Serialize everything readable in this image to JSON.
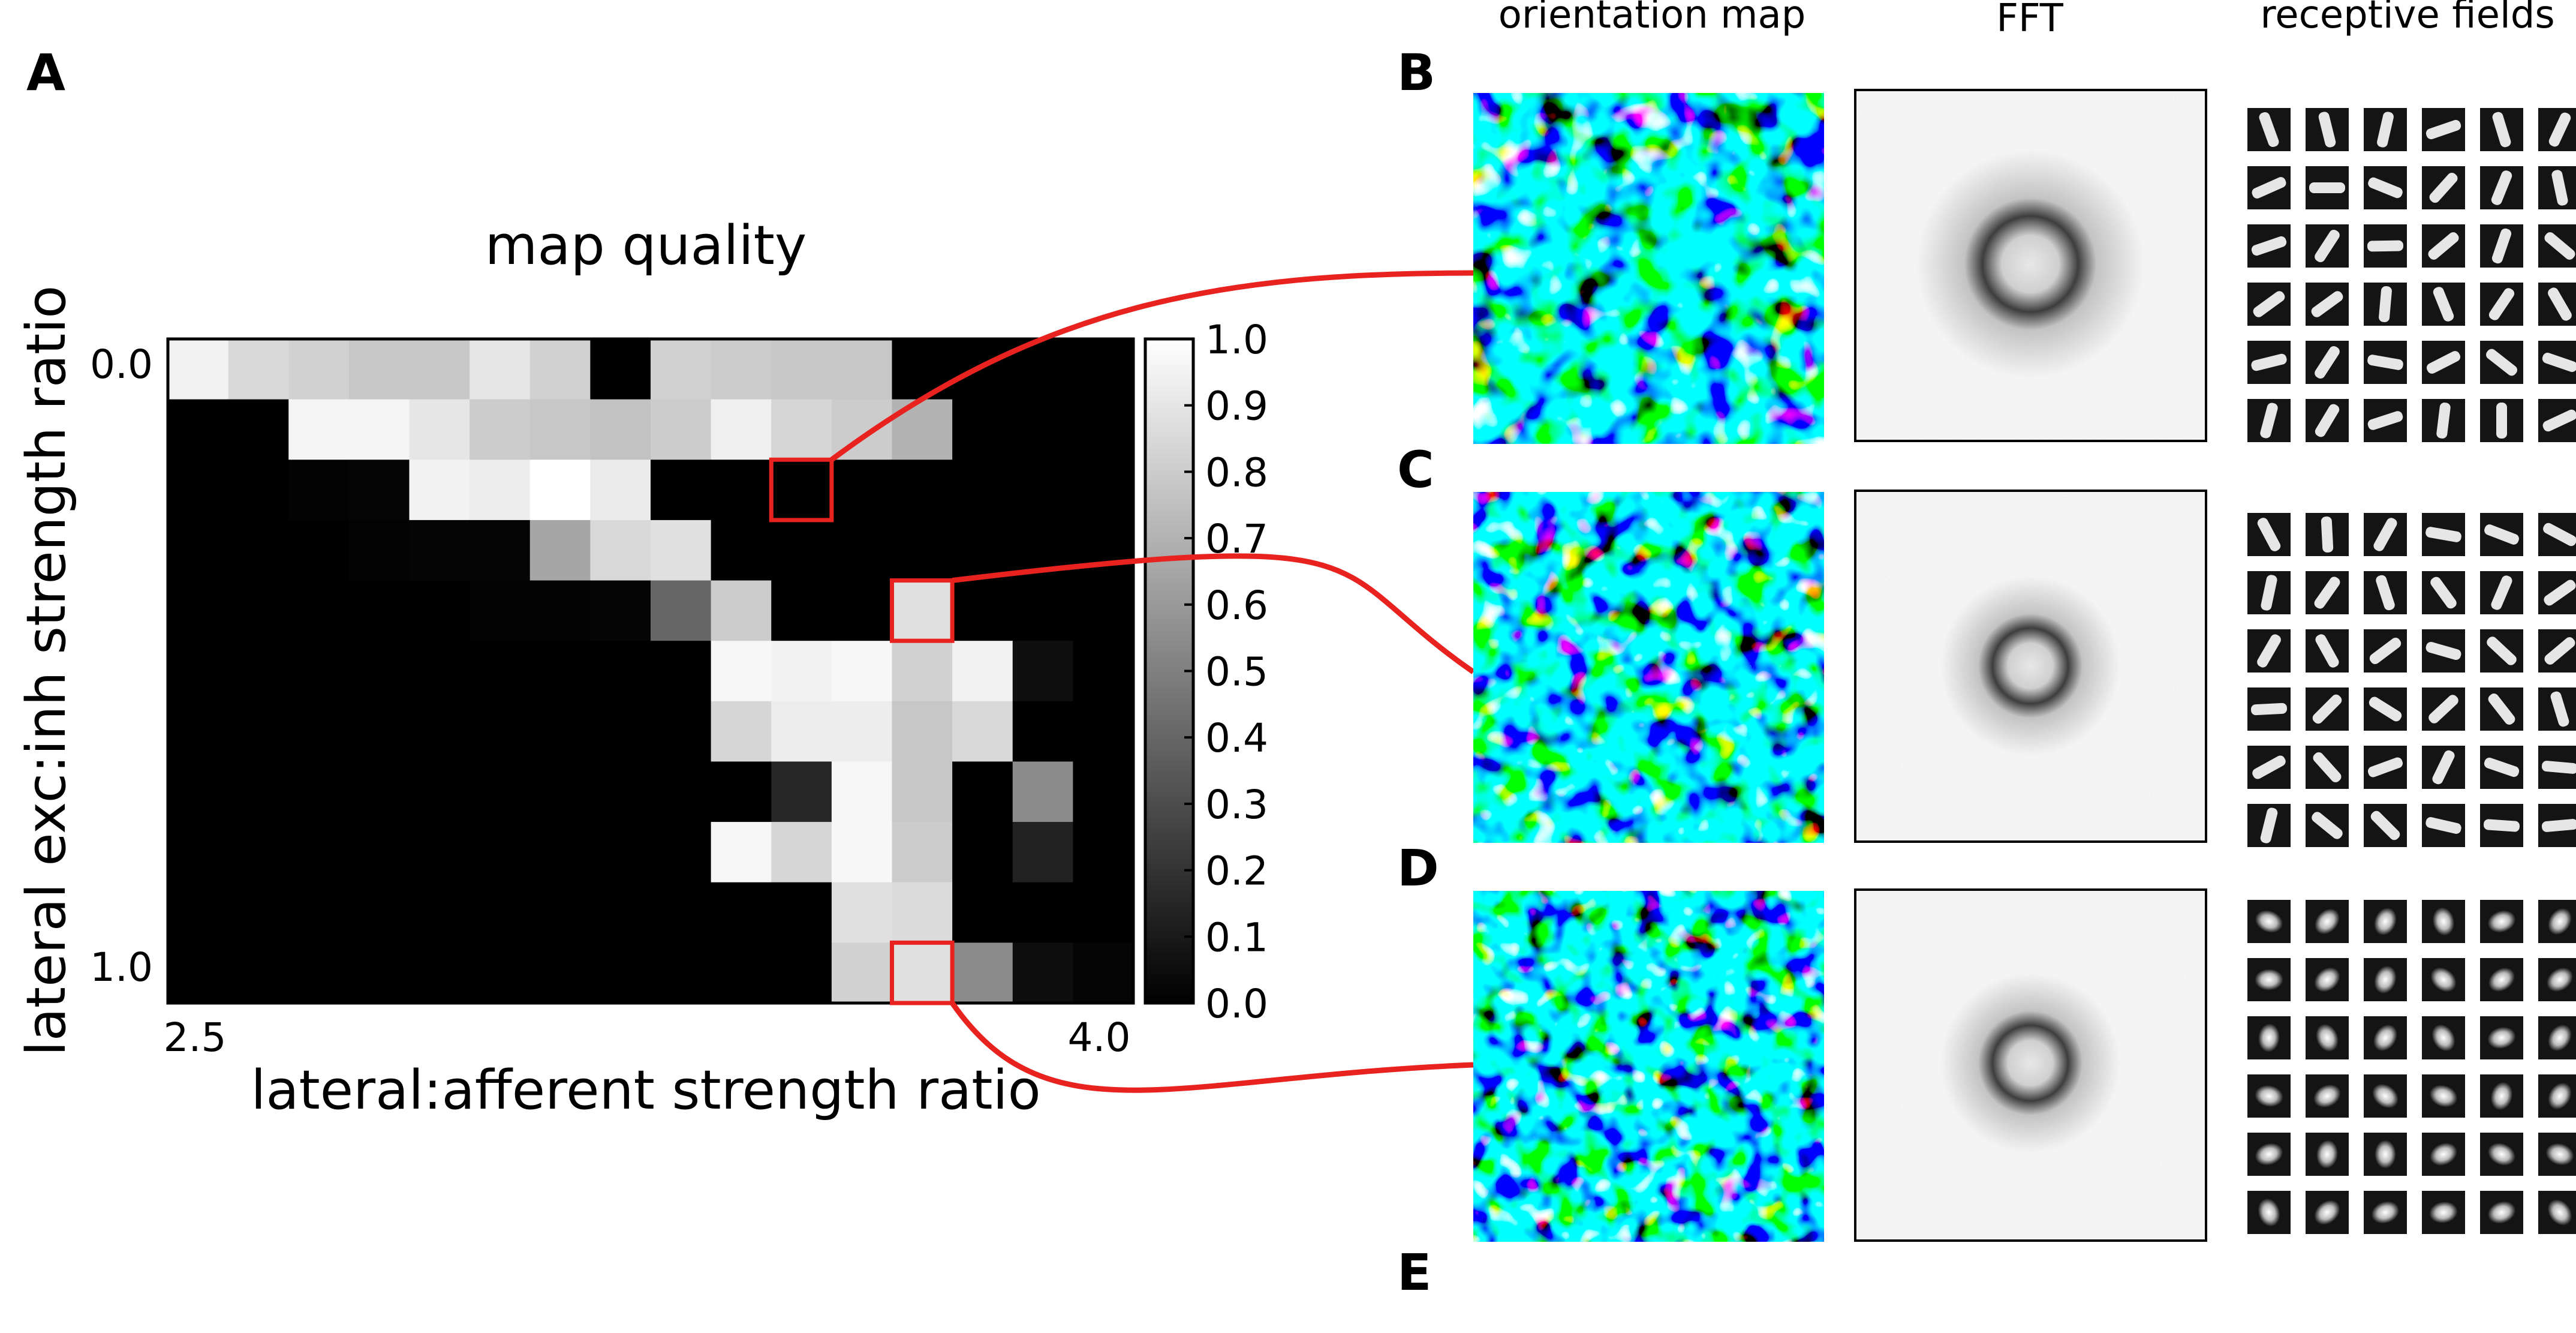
{
  "panel_labels": [
    "A",
    "B",
    "C",
    "D",
    "E"
  ],
  "column_headers": {
    "orientation_map": "orientation map",
    "fft": "FFT",
    "receptive_fields": "receptive fields"
  },
  "colors": {
    "highlight": "#e8221f",
    "grid_dark": "#000000",
    "grid_light": "#ffffff"
  },
  "chart_data": {
    "type": "heatmap",
    "title": "map quality",
    "xlabel": "lateral:afferent strength ratio",
    "ylabel": "lateral exc:inh strength ratio",
    "x_tick_labels": [
      "2.5",
      "4.0"
    ],
    "y_tick_labels": [
      "0.0",
      "1.0"
    ],
    "xlim": [
      2.5,
      4.0
    ],
    "ylim": [
      0.0,
      1.0
    ],
    "colorbar": {
      "min": 0.0,
      "max": 1.0,
      "ticks": [
        "1.0",
        "0.9",
        "0.8",
        "0.7",
        "0.6",
        "0.5",
        "0.4",
        "0.3",
        "0.2",
        "0.1",
        "0.0"
      ]
    },
    "grid_size": [
      16,
      11
    ],
    "values": [
      [
        0.95,
        0.85,
        0.82,
        0.78,
        0.78,
        0.9,
        0.82,
        0.0,
        0.82,
        0.8,
        0.78,
        0.78,
        0.0,
        0.0,
        0.0,
        0.0
      ],
      [
        0.0,
        0.0,
        0.96,
        0.96,
        0.9,
        0.8,
        0.78,
        0.76,
        0.8,
        0.94,
        0.84,
        0.8,
        0.7,
        0.0,
        0.0,
        0.0
      ],
      [
        0.0,
        0.0,
        0.01,
        0.02,
        0.95,
        0.93,
        1.0,
        0.92,
        0.0,
        0.0,
        0.0,
        0.0,
        0.0,
        0.0,
        0.0,
        0.0
      ],
      [
        0.0,
        0.0,
        0.0,
        0.01,
        0.02,
        0.02,
        0.65,
        0.85,
        0.88,
        0.0,
        0.0,
        0.0,
        0.0,
        0.0,
        0.0,
        0.0
      ],
      [
        0.0,
        0.0,
        0.0,
        0.0,
        0.0,
        0.01,
        0.01,
        0.02,
        0.4,
        0.8,
        0.0,
        0.0,
        0.88,
        0.0,
        0.0,
        0.0
      ],
      [
        0.0,
        0.0,
        0.0,
        0.0,
        0.0,
        0.0,
        0.0,
        0.0,
        0.0,
        0.97,
        0.95,
        0.97,
        0.82,
        0.95,
        0.06,
        0.0
      ],
      [
        0.0,
        0.0,
        0.0,
        0.0,
        0.0,
        0.0,
        0.0,
        0.0,
        0.0,
        0.84,
        0.93,
        0.93,
        0.78,
        0.85,
        0.0,
        0.0
      ],
      [
        0.0,
        0.0,
        0.0,
        0.0,
        0.0,
        0.0,
        0.0,
        0.0,
        0.0,
        0.0,
        0.15,
        0.97,
        0.78,
        0.0,
        0.55,
        0.0
      ],
      [
        0.0,
        0.0,
        0.0,
        0.0,
        0.0,
        0.0,
        0.0,
        0.0,
        0.0,
        0.97,
        0.84,
        0.97,
        0.8,
        0.0,
        0.13,
        0.0
      ],
      [
        0.0,
        0.0,
        0.0,
        0.0,
        0.0,
        0.0,
        0.0,
        0.0,
        0.0,
        0.0,
        0.0,
        0.88,
        0.86,
        0.0,
        0.0,
        0.0
      ],
      [
        0.0,
        0.0,
        0.0,
        0.0,
        0.0,
        0.0,
        0.0,
        0.0,
        0.0,
        0.0,
        0.0,
        0.82,
        0.88,
        0.55,
        0.05,
        0.02
      ]
    ],
    "highlighted_cells": [
      {
        "panel": "B",
        "row": 2,
        "col": 10
      },
      {
        "panel": "C",
        "row": 4,
        "col": 12
      },
      {
        "panel": "D",
        "row": 10,
        "col": 12
      }
    ]
  }
}
